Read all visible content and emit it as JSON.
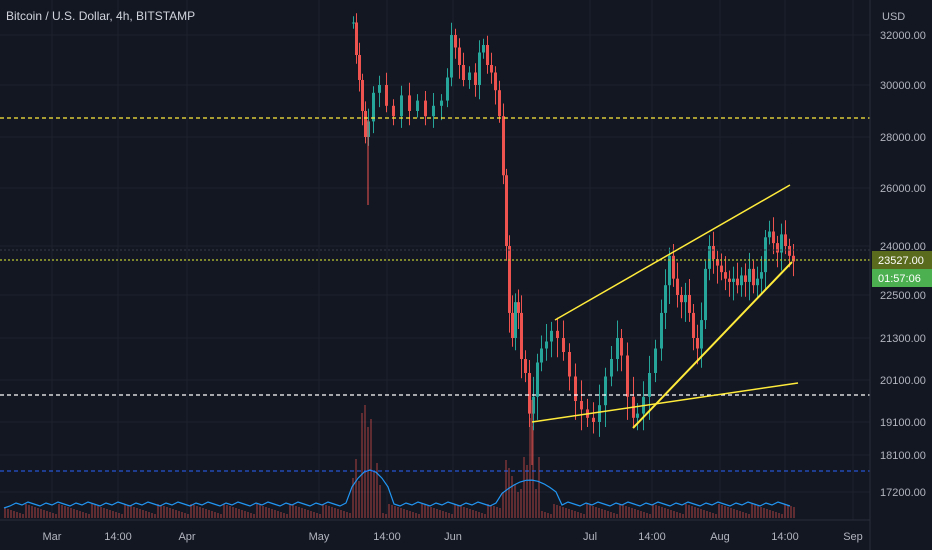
{
  "header": {
    "symbol_title": "Bitcoin / U.S. Dollar, 4h, BITSTAMP"
  },
  "chart_data": {
    "type": "candlestick",
    "currency_label": "USD",
    "price_axis_ticks": [
      32000,
      30000,
      28000,
      26000,
      24000,
      22500,
      21300,
      20100,
      19100,
      18100,
      17200
    ],
    "price_tick_labels": [
      "32000.00",
      "30000.00",
      "28000.00",
      "26000.00",
      "24000.00",
      "22500.00",
      "21300.00",
      "20100.00",
      "19100.00",
      "18100.00",
      "17200.00"
    ],
    "time_axis_labels": [
      "Mar",
      "14:00",
      "Apr",
      "May",
      "14:00",
      "Jun",
      "Jul",
      "14:00",
      "Aug",
      "14:00",
      "Sep"
    ],
    "current_price_label": "23527.00",
    "countdown_label": "01:57:06",
    "horizontal_levels": [
      {
        "label": "resistance",
        "color": "#ffeb3b",
        "style": "dashed"
      },
      {
        "label": "current",
        "color": "#c0ca33",
        "style": "dotted"
      },
      {
        "label": "support",
        "color": "#ffffff",
        "style": "dashed"
      },
      {
        "label": "volume-level",
        "color": "#2962ff",
        "style": "dashed"
      }
    ],
    "trendline_color": "#ffeb3b",
    "up_color": "#26a69a",
    "down_color": "#ef5350",
    "volume_line_color": "#2196f3"
  }
}
